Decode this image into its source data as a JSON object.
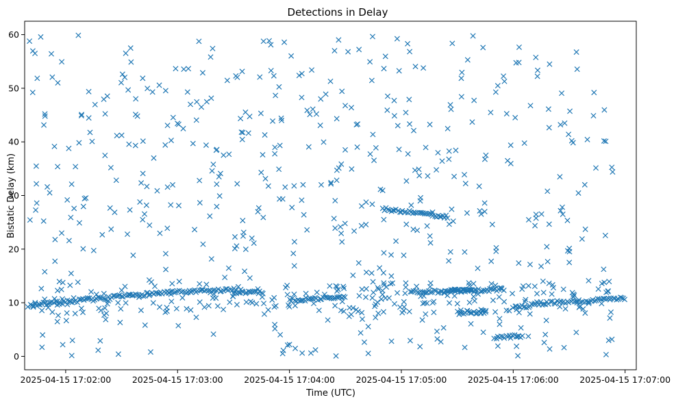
{
  "chart_data": {
    "type": "scatter",
    "title": "Detections in Delay",
    "xlabel": "Time (UTC)",
    "ylabel": "Bistatic Delay (km)",
    "marker": "x",
    "color": "#1f77b4",
    "grid": false,
    "x_ticks": [
      "2025-04-15 17:02:00",
      "2025-04-15 17:03:00",
      "2025-04-15 17:04:00",
      "2025-04-15 17:05:00",
      "2025-04-15 17:06:00",
      "2025-04-15 17:07:00"
    ],
    "y_ticks": [
      "0",
      "10",
      "20",
      "30",
      "40",
      "50",
      "60"
    ],
    "xlim": [
      "2025-04-15 17:01:38",
      "2025-04-15 17:07:06"
    ],
    "ylim": [
      -2.5,
      62.5
    ],
    "tracks": [
      {
        "t_start": "2025-04-15 17:01:40",
        "t_end": "2025-04-15 17:02:50",
        "y_start": 9.5,
        "y_end": 11.8
      },
      {
        "t_start": "2025-04-15 17:02:50",
        "t_end": "2025-04-15 17:03:30",
        "y_start": 11.8,
        "y_end": 12.4
      },
      {
        "t_start": "2025-04-15 17:03:30",
        "t_end": "2025-04-15 17:03:45",
        "y_start": 12.0,
        "y_end": 12.0
      },
      {
        "t_start": "2025-04-15 17:04:00",
        "t_end": "2025-04-15 17:04:30",
        "y_start": 10.5,
        "y_end": 11.0
      },
      {
        "t_start": "2025-04-15 17:04:50",
        "t_end": "2025-04-15 17:05:25",
        "y_start": 27.5,
        "y_end": 26.0
      },
      {
        "t_start": "2025-04-15 17:05:05",
        "t_end": "2025-04-15 17:05:40",
        "y_start": 11.9,
        "y_end": 12.4
      },
      {
        "t_start": "2025-04-15 17:05:25",
        "t_end": "2025-04-15 17:05:55",
        "y_start": 12.0,
        "y_end": 12.5
      },
      {
        "t_start": "2025-04-15 17:05:30",
        "t_end": "2025-04-15 17:05:45",
        "y_start": 8.1,
        "y_end": 8.3
      },
      {
        "t_start": "2025-04-15 17:05:50",
        "t_end": "2025-04-15 17:06:05",
        "y_start": 3.5,
        "y_end": 3.8
      },
      {
        "t_start": "2025-04-15 17:06:00",
        "t_end": "2025-04-15 17:06:10",
        "y_start": 9.0,
        "y_end": 9.5
      },
      {
        "t_start": "2025-04-15 17:06:10",
        "t_end": "2025-04-15 17:07:00",
        "y_start": 9.8,
        "y_end": 10.8
      }
    ],
    "noise": {
      "count": 720,
      "y_range": [
        0,
        60
      ],
      "seed": 7
    }
  }
}
